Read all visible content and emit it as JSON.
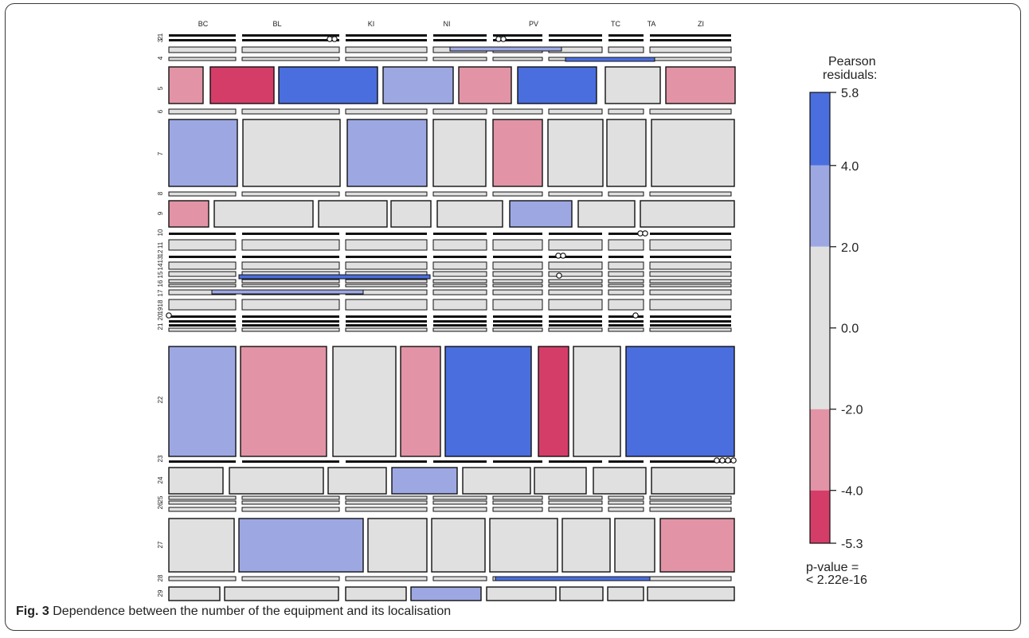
{
  "figure": {
    "label": "Fig. 3",
    "caption": "Dependence between the number of the equipment and its localisation"
  },
  "chart_data": {
    "type": "mosaic",
    "columns": [
      "BC",
      "BL",
      "KI",
      "NI",
      "PV",
      "TC",
      "TA",
      "ZI"
    ],
    "row_labels": [
      "1",
      "2",
      "3",
      "4",
      "5",
      "6",
      "7",
      "8",
      "9",
      "10",
      "11",
      "12",
      "13",
      "14",
      "15",
      "16",
      "17",
      "18",
      "19",
      "20",
      "21",
      "22",
      "23",
      "24",
      "25",
      "26",
      "27",
      "28",
      "29"
    ],
    "legend": {
      "title": "Pearson residuals:",
      "ticks": [
        "5.8",
        "4.0",
        "2.0",
        "0.0",
        "-2.0",
        "-4.0",
        "-5.3"
      ],
      "bands": [
        {
          "from": 4.0,
          "to": 5.8,
          "color": "#4a6ede"
        },
        {
          "from": 2.0,
          "to": 4.0,
          "color": "#9da8e3"
        },
        {
          "from": -2.0,
          "to": 2.0,
          "color": "#e0e0e0"
        },
        {
          "from": -4.0,
          "to": -2.0,
          "color": "#e294a6"
        },
        {
          "from": -5.3,
          "to": -4.0,
          "color": "#d53d69"
        }
      ],
      "p_value_label": "p-value =",
      "p_value": "< 2.22e-16"
    },
    "colors": {
      "strong_pos": "#4a6ede",
      "pos": "#9da8e3",
      "neutral": "#e0e0e0",
      "neg": "#e294a6",
      "strong_neg": "#d53d69"
    },
    "major_rows": [
      {
        "row": "5",
        "cells": [
          [
            "BC",
            "neg"
          ],
          [
            "BL",
            "strong_neg"
          ],
          [
            "KI",
            "strong_pos"
          ],
          [
            "NI",
            "pos"
          ],
          [
            "PV",
            "neg"
          ],
          [
            "TC",
            "strong_pos"
          ],
          [
            "TA",
            "neutral"
          ],
          [
            "ZI",
            "neg"
          ]
        ]
      },
      {
        "row": "7",
        "cells": [
          [
            "BC",
            "pos"
          ],
          [
            "BL",
            "neutral"
          ],
          [
            "KI",
            "pos"
          ],
          [
            "NI",
            "neutral"
          ],
          [
            "PV",
            "neg"
          ],
          [
            "TC",
            "neutral"
          ],
          [
            "TA",
            "neutral"
          ],
          [
            "ZI",
            "neutral"
          ]
        ]
      },
      {
        "row": "9",
        "cells": [
          [
            "BC",
            "neg"
          ],
          [
            "BL",
            "neutral"
          ],
          [
            "KI",
            "neutral"
          ],
          [
            "NI",
            "neutral"
          ],
          [
            "PV",
            "neutral"
          ],
          [
            "TC",
            "pos"
          ],
          [
            "TA",
            "neutral"
          ],
          [
            "ZI",
            "neutral"
          ]
        ]
      },
      {
        "row": "22",
        "cells": [
          [
            "BC",
            "pos"
          ],
          [
            "BL",
            "neg"
          ],
          [
            "KI",
            "neutral"
          ],
          [
            "NI",
            "neg"
          ],
          [
            "PV",
            "strong_pos"
          ],
          [
            "TC",
            "strong_neg"
          ],
          [
            "TA",
            "neutral"
          ],
          [
            "ZI",
            "strong_pos"
          ]
        ]
      },
      {
        "row": "24",
        "cells": [
          [
            "BC",
            "neutral"
          ],
          [
            "BL",
            "neutral"
          ],
          [
            "KI",
            "neutral"
          ],
          [
            "NI",
            "pos"
          ],
          [
            "PV",
            "neutral"
          ],
          [
            "TC",
            "neutral"
          ],
          [
            "TA",
            "neutral"
          ],
          [
            "ZI",
            "neutral"
          ]
        ]
      },
      {
        "row": "27",
        "cells": [
          [
            "BC",
            "neutral"
          ],
          [
            "BL",
            "pos"
          ],
          [
            "KI",
            "neutral"
          ],
          [
            "NI",
            "neutral"
          ],
          [
            "PV",
            "neutral"
          ],
          [
            "TC",
            "neutral"
          ],
          [
            "TA",
            "neutral"
          ],
          [
            "ZI",
            "neg"
          ]
        ]
      },
      {
        "row": "29",
        "cells": [
          [
            "BC",
            "neutral"
          ],
          [
            "BL",
            "neutral"
          ],
          [
            "KI",
            "neutral"
          ],
          [
            "NI",
            "pos"
          ],
          [
            "PV",
            "neutral"
          ],
          [
            "TC",
            "neutral"
          ],
          [
            "TA",
            "neutral"
          ],
          [
            "ZI",
            "neutral"
          ]
        ]
      }
    ]
  }
}
